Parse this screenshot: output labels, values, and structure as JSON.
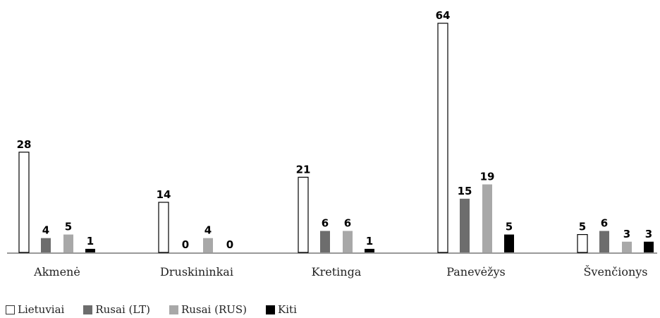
{
  "chart_data": {
    "type": "bar",
    "title": "",
    "xlabel": "",
    "ylabel": "",
    "categories": [
      "Akmenė",
      "Druskininkai",
      "Kretinga",
      "Panevėžys",
      "Švenčionys"
    ],
    "series": [
      {
        "name": "Lietuviai",
        "values": [
          28,
          14,
          21,
          64,
          5
        ],
        "color": "#ffffff",
        "stroke": "#000000"
      },
      {
        "name": "Rusai (LT)",
        "values": [
          4,
          0,
          6,
          15,
          6
        ],
        "color": "#6d6d6d"
      },
      {
        "name": "Rusai (RUS)",
        "values": [
          5,
          4,
          6,
          19,
          3
        ],
        "color": "#a8a8a8"
      },
      {
        "name": "Kiti",
        "values": [
          1,
          0,
          1,
          5,
          3
        ],
        "color": "#000000"
      }
    ],
    "ylim": [
      0,
      64
    ],
    "grid": false,
    "legend_position": "bottom-left"
  }
}
